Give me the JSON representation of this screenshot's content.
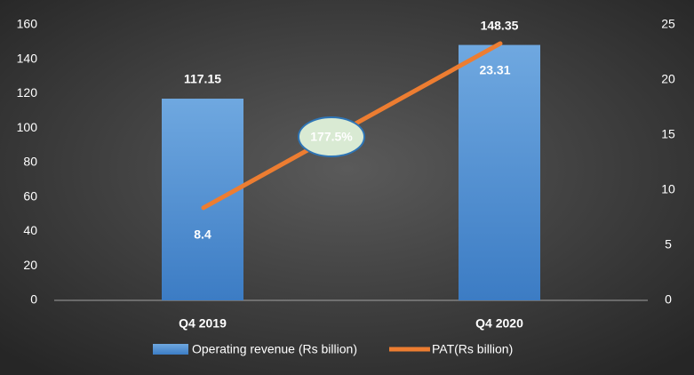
{
  "chart_data": {
    "type": "bar_line",
    "categories": [
      "Q4 2019",
      "Q4 2020"
    ],
    "series": [
      {
        "name": "Operating revenue (Rs billion)",
        "color": "#5b9bd5",
        "values": [
          117.15,
          148.35
        ],
        "type": "bar"
      },
      {
        "name": "PAT(Rs billion)",
        "color": "#ed7d31",
        "values": [
          8.4,
          23.31
        ],
        "type": "line",
        "axis": "y2"
      }
    ],
    "ylim": [
      0,
      160
    ],
    "yticks": [
      0,
      20,
      40,
      60,
      80,
      100,
      120,
      140,
      160
    ],
    "y2lim": [
      0,
      25
    ],
    "y2ticks": [
      0,
      5,
      10,
      15,
      20,
      25
    ],
    "annotation": "177.5%",
    "legend": "bottom",
    "grid": false
  }
}
